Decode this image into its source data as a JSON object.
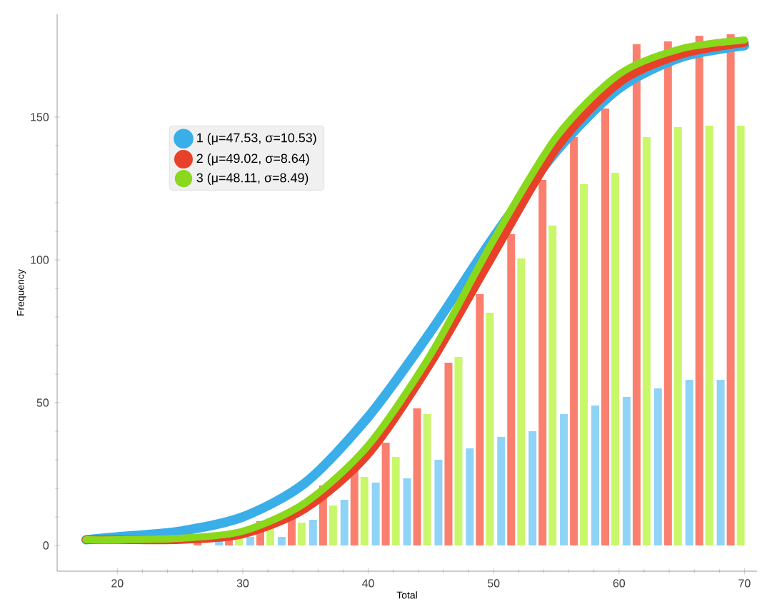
{
  "chart_data": {
    "type": "bar",
    "xlabel": "Total",
    "ylabel": "Frequency",
    "xlim": [
      15.2,
      71
    ],
    "ylim": [
      -9,
      186
    ],
    "xticks": [
      20,
      30,
      40,
      50,
      60,
      70
    ],
    "yticks": [
      0,
      50,
      100,
      150
    ],
    "legend": "top left",
    "grid": false,
    "series": [
      {
        "color": "#8fd3f7",
        "x": [
          26.4,
          28.9,
          31.4,
          33.9,
          36.4,
          38.9,
          41.4,
          43.9,
          46.4,
          48.9,
          51.4,
          53.9,
          56.4,
          58.9,
          61.4,
          63.9,
          66.4,
          68.9
        ],
        "values": [
          0,
          2,
          3,
          3,
          9,
          16,
          22,
          23.5,
          30,
          34,
          38,
          40,
          46,
          49,
          52,
          55,
          58,
          58
        ]
      },
      {
        "color": "#fa7f6e",
        "x": [
          26.4,
          28.9,
          31.4,
          33.9,
          36.4,
          38.9,
          41.4,
          43.9,
          46.4,
          48.9,
          51.4,
          53.9,
          56.4,
          58.9,
          61.4,
          63.9,
          66.4,
          68.9
        ],
        "values": [
          1,
          3,
          8.5,
          13,
          21,
          28,
          36,
          48,
          64,
          88,
          109,
          128,
          143,
          153,
          175.5,
          176.5,
          178.5,
          179
        ]
      },
      {
        "color": "#c8f76a",
        "x": [
          26.4,
          28.9,
          31.4,
          33.9,
          36.4,
          38.9,
          41.4,
          43.9,
          46.4,
          48.9,
          51.4,
          53.9,
          56.4,
          58.9,
          61.4,
          63.9,
          66.4,
          68.9
        ],
        "values": [
          0,
          3,
          6,
          8,
          14,
          24,
          31,
          46,
          66,
          81.5,
          100.5,
          112,
          126.5,
          130.5,
          143,
          146.5,
          147,
          147
        ]
      },
      {
        "type": "line",
        "name": "1 (μ=47.53, σ=10.53)",
        "color": "#3aaee8",
        "x": [
          17.5,
          20,
          25,
          30,
          35,
          40,
          45,
          50,
          55,
          60,
          65,
          70
        ],
        "values": [
          2,
          3,
          5,
          10,
          22,
          45,
          75,
          108,
          138,
          160,
          171,
          175
        ]
      },
      {
        "type": "line",
        "name": "2 (μ=49.02, σ=8.64)",
        "color": "#e8412a",
        "x": [
          17.5,
          20,
          25,
          30,
          35,
          40,
          45,
          50,
          55,
          60,
          65,
          70
        ],
        "values": [
          2,
          2,
          2,
          4,
          13,
          32,
          64,
          102,
          139,
          162,
          172,
          176
        ]
      },
      {
        "type": "line",
        "name": "3 (μ=48.11, σ=8.49)",
        "color": "#8ad81c",
        "x": [
          17.5,
          20,
          25,
          30,
          35,
          40,
          45,
          50,
          55,
          60,
          65,
          70
        ],
        "values": [
          2,
          2,
          2.5,
          5,
          15,
          35,
          67,
          107,
          143,
          165,
          174,
          177
        ]
      }
    ]
  }
}
